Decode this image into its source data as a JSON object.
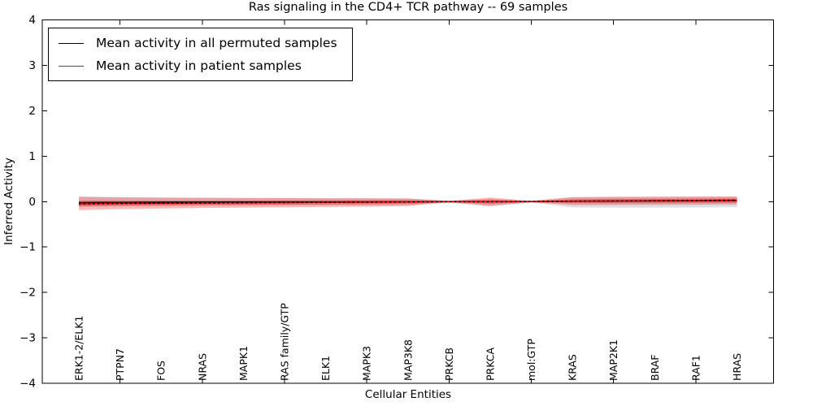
{
  "chart_data": {
    "type": "line",
    "title": "Ras signaling in the CD4+ TCR pathway -- 69 samples",
    "xlabel": "Cellular Entities",
    "ylabel": "Inferred Activity",
    "ylim": [
      -4,
      4
    ],
    "yticks": [
      -4,
      -3,
      -2,
      -1,
      0,
      1,
      2,
      3,
      4
    ],
    "ytick_labels": [
      "−4",
      "−3",
      "−2",
      "−1",
      "0",
      "1",
      "2",
      "3",
      "4"
    ],
    "xtick_indices": [
      1,
      3,
      5,
      7,
      9,
      11,
      13,
      15
    ],
    "grid": false,
    "legend_position": "upper left",
    "legend": [
      {
        "label": "Mean activity in all permuted samples",
        "color": "#000000"
      },
      {
        "label": "Mean activity in patient samples",
        "color": "#ff0000"
      }
    ],
    "categories": [
      "ERK1-2/ELK1",
      "PTPN7",
      "FOS",
      "NRAS",
      "MAPK1",
      "RAS family/GTP",
      "ELK1",
      "MAPK3",
      "MAP3K8",
      "PRKCB",
      "PRKCA",
      "mol:GTP",
      "KRAS",
      "MAP2K1",
      "BRAF",
      "RAF1",
      "HRAS"
    ],
    "series": [
      {
        "name": "permuted-mean",
        "legend": "Mean activity in all permuted samples",
        "color": "#000000",
        "style": "solid",
        "values": [
          -0.02,
          -0.015,
          -0.012,
          -0.01,
          -0.008,
          -0.006,
          -0.004,
          -0.003,
          -0.002,
          -0.001,
          -0.002,
          0.0,
          0.004,
          0.008,
          0.011,
          0.014,
          0.018
        ]
      },
      {
        "name": "patient-mean",
        "legend": "Mean activity in patient samples",
        "color": "#ee0000",
        "style": "solid-with-black-dashed-overlay",
        "values": [
          -0.05,
          -0.042,
          -0.036,
          -0.031,
          -0.026,
          -0.021,
          -0.016,
          -0.012,
          -0.008,
          -0.002,
          -0.004,
          0.001,
          0.01,
          0.016,
          0.021,
          0.026,
          0.032
        ]
      }
    ],
    "bands": [
      {
        "name": "permuted-std-band",
        "color": "#b8b8c2",
        "opacity": 0.45,
        "lower": [
          -0.12,
          -0.105,
          -0.098,
          -0.092,
          -0.088,
          -0.084,
          -0.081,
          -0.079,
          -0.076,
          -0.02,
          -0.11,
          -0.02,
          -0.128,
          -0.134,
          -0.131,
          -0.129,
          -0.124
        ],
        "upper": [
          0.115,
          0.1,
          0.092,
          0.086,
          0.082,
          0.08,
          0.077,
          0.075,
          0.071,
          0.02,
          0.056,
          0.02,
          0.1,
          0.106,
          0.107,
          0.109,
          0.111
        ]
      },
      {
        "name": "patient-std-band",
        "color": "#ff0000",
        "opacity": 0.28,
        "lower": [
          -0.19,
          -0.165,
          -0.152,
          -0.141,
          -0.132,
          -0.126,
          -0.119,
          -0.111,
          -0.1,
          -0.016,
          -0.091,
          -0.016,
          -0.076,
          -0.075,
          -0.071,
          -0.069,
          -0.064
        ],
        "upper": [
          0.102,
          0.092,
          0.086,
          0.082,
          0.079,
          0.076,
          0.072,
          0.07,
          0.066,
          0.016,
          0.09,
          0.016,
          0.096,
          0.104,
          0.106,
          0.109,
          0.112
        ]
      },
      {
        "name": "patient-inner-std-band",
        "color": "#dd1111",
        "opacity": 0.34,
        "lower": [
          -0.106,
          -0.092,
          -0.084,
          -0.078,
          -0.073,
          -0.069,
          -0.064,
          -0.058,
          -0.052,
          -0.008,
          -0.049,
          -0.008,
          -0.038,
          -0.037,
          -0.035,
          -0.033,
          -0.03
        ],
        "upper": [
          0.021,
          0.021,
          0.021,
          0.022,
          0.024,
          0.026,
          0.028,
          0.03,
          0.032,
          0.008,
          0.048,
          0.008,
          0.054,
          0.06,
          0.063,
          0.066,
          0.07
        ]
      }
    ],
    "colors": {
      "axis": "#000000",
      "background": "#ffffff",
      "dashed_overlay": "#000000"
    }
  }
}
